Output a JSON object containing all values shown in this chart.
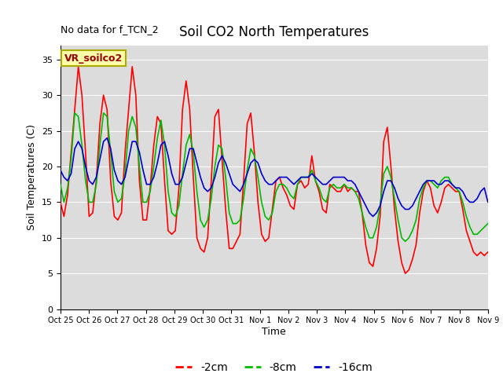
{
  "title": "Soil CO2 North Temperatures",
  "no_data_label": "No data for f_TCN_2",
  "legend_box_label": "VR_soilco2",
  "ylabel": "Soil Temperatures (C)",
  "xlabel": "Time",
  "ylim": [
    0,
    37
  ],
  "yticks": [
    0,
    5,
    10,
    15,
    20,
    25,
    30,
    35
  ],
  "xtick_labels": [
    "Oct 25",
    "Oct 26",
    "Oct 27",
    "Oct 28",
    "Oct 29",
    "Oct 30",
    "Oct 31",
    "Nov 1",
    "Nov 2",
    "Nov 3",
    "Nov 4",
    "Nov 5",
    "Nov 6",
    "Nov 7",
    "Nov 8",
    "Nov 9"
  ],
  "line_colors": {
    "red": "#ff0000",
    "green": "#00bb00",
    "blue": "#0000cc"
  },
  "legend_entries": [
    "-2cm",
    "-8cm",
    "-16cm"
  ],
  "plot_facecolor": "#dcdcdc",
  "fig_facecolor": "#ffffff",
  "grid_color": "#ffffff",
  "red_data": [
    15.0,
    13.0,
    16.0,
    22.0,
    28.0,
    34.0,
    30.0,
    22.0,
    13.0,
    13.5,
    18.0,
    26.0,
    30.0,
    28.0,
    18.0,
    13.0,
    12.5,
    13.5,
    22.0,
    28.0,
    34.0,
    30.0,
    18.0,
    12.5,
    12.5,
    17.0,
    23.0,
    27.0,
    26.0,
    18.0,
    11.0,
    10.5,
    11.0,
    17.0,
    28.0,
    32.0,
    28.0,
    18.5,
    10.0,
    8.5,
    8.0,
    10.0,
    18.0,
    27.0,
    28.0,
    21.0,
    14.0,
    8.5,
    8.5,
    9.5,
    10.5,
    18.0,
    26.0,
    27.5,
    22.0,
    15.0,
    10.5,
    9.5,
    10.0,
    14.0,
    18.0,
    18.5,
    17.0,
    16.0,
    14.5,
    14.0,
    17.5,
    18.0,
    17.0,
    17.5,
    21.5,
    18.0,
    16.5,
    14.0,
    13.5,
    17.5,
    17.0,
    16.5,
    16.5,
    17.5,
    16.5,
    17.0,
    16.5,
    16.5,
    13.5,
    9.0,
    6.5,
    6.0,
    8.5,
    13.0,
    23.5,
    25.5,
    20.0,
    14.0,
    9.5,
    6.5,
    5.0,
    5.5,
    7.0,
    9.0,
    13.5,
    16.5,
    18.0,
    17.0,
    14.5,
    13.5,
    15.0,
    17.0,
    17.5,
    17.0,
    16.5,
    16.5,
    14.0,
    11.0,
    9.5,
    8.0,
    7.5,
    8.0,
    7.5,
    8.0
  ],
  "green_data": [
    17.5,
    15.0,
    17.0,
    21.0,
    27.5,
    27.0,
    23.0,
    18.0,
    15.0,
    15.0,
    17.5,
    23.0,
    27.5,
    27.0,
    22.0,
    16.5,
    15.0,
    15.5,
    19.0,
    25.0,
    27.0,
    25.5,
    20.0,
    15.0,
    15.0,
    16.5,
    20.0,
    24.0,
    26.5,
    23.0,
    16.5,
    13.5,
    13.0,
    14.5,
    19.0,
    23.0,
    24.5,
    22.0,
    16.5,
    12.5,
    11.5,
    12.5,
    15.5,
    20.0,
    23.0,
    22.5,
    18.5,
    13.5,
    12.0,
    12.0,
    12.5,
    15.5,
    19.5,
    22.5,
    21.5,
    18.5,
    15.0,
    13.0,
    12.5,
    13.5,
    16.5,
    17.5,
    17.5,
    17.0,
    16.0,
    15.5,
    17.5,
    18.5,
    18.5,
    18.5,
    19.5,
    18.0,
    17.0,
    15.5,
    15.0,
    17.0,
    17.5,
    17.0,
    17.0,
    17.5,
    17.0,
    17.0,
    16.5,
    15.5,
    13.5,
    11.5,
    10.0,
    10.0,
    11.5,
    14.5,
    19.0,
    20.0,
    18.5,
    15.5,
    12.5,
    10.0,
    9.5,
    10.0,
    11.0,
    12.5,
    15.5,
    17.0,
    18.0,
    18.0,
    17.5,
    17.0,
    18.0,
    18.5,
    18.5,
    17.5,
    17.0,
    16.5,
    15.0,
    13.0,
    11.5,
    10.5,
    10.5,
    11.0,
    11.5,
    12.0
  ],
  "blue_data": [
    19.5,
    18.5,
    18.0,
    19.0,
    22.5,
    23.5,
    22.5,
    20.0,
    18.0,
    17.5,
    18.5,
    21.0,
    23.5,
    24.0,
    22.5,
    19.5,
    18.0,
    17.5,
    18.5,
    21.0,
    23.5,
    23.5,
    22.0,
    19.5,
    17.5,
    17.5,
    18.5,
    20.5,
    23.0,
    23.5,
    21.5,
    19.0,
    17.5,
    17.5,
    18.5,
    20.5,
    22.5,
    22.5,
    20.5,
    18.5,
    17.0,
    16.5,
    17.0,
    18.5,
    20.5,
    21.5,
    20.5,
    19.0,
    17.5,
    17.0,
    16.5,
    17.5,
    19.0,
    20.5,
    21.0,
    20.5,
    19.0,
    18.0,
    17.5,
    17.5,
    18.0,
    18.5,
    18.5,
    18.5,
    18.0,
    17.5,
    18.0,
    18.5,
    18.5,
    18.5,
    19.0,
    18.5,
    18.0,
    17.5,
    17.5,
    18.0,
    18.5,
    18.5,
    18.5,
    18.5,
    18.0,
    18.0,
    17.5,
    16.5,
    15.5,
    14.5,
    13.5,
    13.0,
    13.5,
    14.5,
    16.5,
    18.0,
    18.0,
    17.0,
    15.5,
    14.5,
    14.0,
    14.0,
    14.5,
    15.5,
    16.5,
    17.5,
    18.0,
    18.0,
    18.0,
    17.5,
    17.5,
    18.0,
    18.0,
    17.5,
    17.0,
    17.0,
    16.5,
    15.5,
    15.0,
    15.0,
    15.5,
    16.5,
    17.0,
    15.0
  ]
}
